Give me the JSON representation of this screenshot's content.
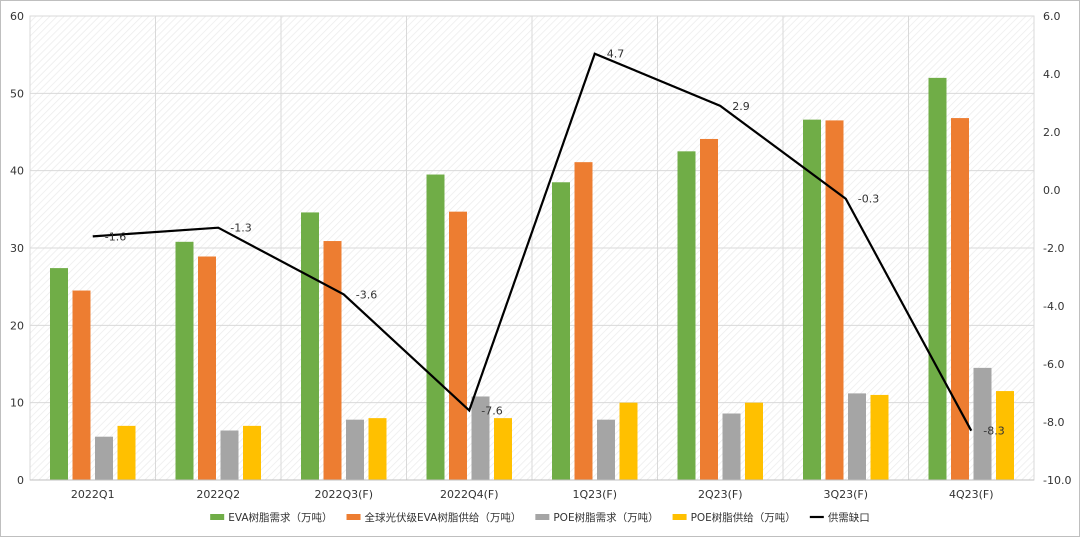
{
  "chart_data": {
    "type": "bar+line",
    "categories": [
      "2022Q1",
      "2022Q2",
      "2022Q3(F)",
      "2022Q4(F)",
      "1Q23(F)",
      "2Q23(F)",
      "3Q23(F)",
      "4Q23(F)"
    ],
    "series": [
      {
        "name": "EVA树脂需求（万吨）",
        "type": "bar",
        "axis": "left",
        "color": "#70ad47",
        "values": [
          27.4,
          30.8,
          34.6,
          39.5,
          38.5,
          42.5,
          46.6,
          52.0
        ]
      },
      {
        "name": "全球光伏级EVA树脂供给（万吨）",
        "type": "bar",
        "axis": "left",
        "color": "#ed7d31",
        "values": [
          24.5,
          28.9,
          30.9,
          34.7,
          41.1,
          44.1,
          46.5,
          46.8
        ]
      },
      {
        "name": "POE树脂需求（万吨）",
        "type": "bar",
        "axis": "left",
        "color": "#a5a5a5",
        "values": [
          5.6,
          6.4,
          7.8,
          10.8,
          7.8,
          8.6,
          11.2,
          14.5
        ]
      },
      {
        "name": "POE树脂供给（万吨）",
        "type": "bar",
        "axis": "left",
        "color": "#ffc000",
        "values": [
          7.0,
          7.0,
          8.0,
          8.0,
          10.0,
          10.0,
          11.0,
          11.5
        ]
      },
      {
        "name": "供需缺口",
        "type": "line",
        "axis": "right",
        "color": "#000000",
        "values": [
          -1.6,
          -1.3,
          -3.6,
          -7.6,
          4.7,
          2.9,
          -0.3,
          -8.3
        ],
        "labels": [
          "-1.6",
          "-1.3",
          "-3.6",
          "-7.6",
          "4.7",
          "2.9",
          "-0.3",
          "-8.3"
        ]
      }
    ],
    "y_left": {
      "min": 0,
      "max": 60,
      "ticks": [
        "0",
        "10",
        "20",
        "30",
        "40",
        "50",
        "60"
      ]
    },
    "y_right": {
      "min": -10,
      "max": 6,
      "ticks": [
        "-10.0",
        "-8.0",
        "-6.0",
        "-4.0",
        "-2.0",
        "0.0",
        "2.0",
        "4.0",
        "6.0"
      ]
    },
    "grid": true,
    "legend": "bottom"
  }
}
